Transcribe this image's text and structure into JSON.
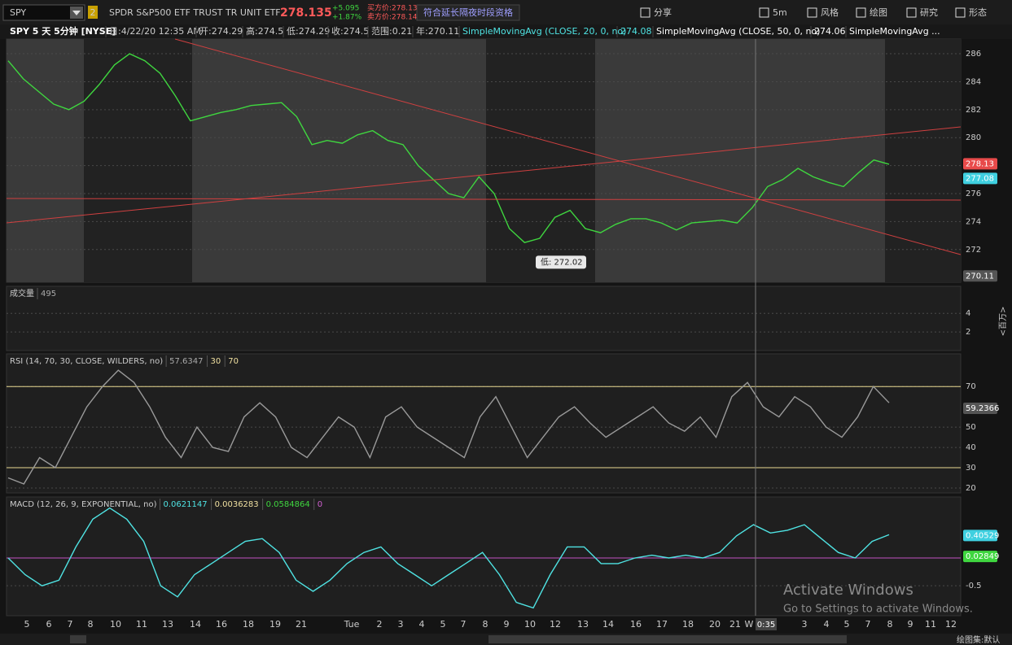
{
  "toolbar": {
    "symbol": "SPY",
    "badge": "2",
    "description": "SPDR S&P500 ETF TRUST TR UNIT ETF",
    "last": "278.135",
    "change": "+5.095",
    "change_pct": "+1.87%",
    "bid": "买方价:278.13",
    "ask": "卖方价:278.14",
    "extended": "符合延长隔夜时段资格",
    "buttons": [
      "分享",
      "5m",
      "风格",
      "绘图",
      "研究",
      "形态"
    ]
  },
  "info_bar": {
    "items": [
      {
        "text": "SPY 5 天 5分钟 [NYSE]",
        "color": "#ffffff"
      },
      {
        "text": "日:4/22/20 12:35 AM",
        "color": "#cccccc"
      },
      {
        "text": "开:274.29",
        "color": "#cccccc"
      },
      {
        "text": "高:274.5",
        "color": "#cccccc"
      },
      {
        "text": "低:274.29",
        "color": "#cccccc"
      },
      {
        "text": "收:274.5",
        "color": "#cccccc"
      },
      {
        "text": "范围:0.21",
        "color": "#cccccc"
      },
      {
        "text": "年:270.11",
        "color": "#cccccc"
      },
      {
        "text": "SimpleMovingAvg (CLOSE, 20, 0, no)",
        "color": "#4fe3e3"
      },
      {
        "text": "274.08",
        "color": "#4fe3e3"
      },
      {
        "text": "SimpleMovingAvg (CLOSE, 50, 0, no)",
        "color": "#ffffff"
      },
      {
        "text": "274.06",
        "color": "#ffffff"
      },
      {
        "text": "SimpleMovingAvg ...",
        "color": "#ffffff"
      }
    ]
  },
  "chart_data": [
    {
      "type": "line",
      "ylim": [
        269.66,
        287.05
      ],
      "yticks": [
        272,
        274,
        276,
        278,
        280,
        282,
        284,
        286
      ],
      "series": [
        {
          "color": "#3fd63f",
          "values": [
            285.5,
            284.2,
            283.3,
            282.4,
            282.0,
            282.6,
            283.8,
            285.2,
            286.0,
            285.5,
            284.6,
            283.0,
            281.2,
            281.5,
            281.8,
            282.0,
            282.3,
            282.4,
            282.5,
            281.5,
            279.5,
            279.8,
            279.6,
            280.2,
            280.5,
            279.8,
            279.5,
            278.0,
            277.0,
            276.0,
            275.7,
            277.2,
            276.0,
            273.5,
            272.5,
            272.8,
            274.3,
            274.8,
            273.5,
            273.2,
            273.8,
            274.2,
            274.2,
            273.9,
            273.4,
            273.9,
            274.0,
            274.1,
            273.9,
            275.0,
            276.5,
            277.0,
            277.8,
            277.2,
            276.8,
            276.5,
            277.5,
            278.4,
            278.1
          ]
        }
      ],
      "price_labels": [
        {
          "value": 278.13,
          "color": "#e84a4a"
        },
        {
          "value": 277.08,
          "color": "#3fd0e0"
        },
        {
          "value": 270.11,
          "color": "#555555"
        }
      ],
      "annotation": {
        "value": 272.02,
        "label": "低: 272.02"
      }
    },
    {
      "type": "volume",
      "title": "成交量",
      "readouts": [
        {
          "value": 495,
          "color": "#aaaaaa"
        }
      ],
      "ylim": [
        0,
        6.9
      ],
      "yticks": [
        2,
        4
      ],
      "unit": "<百万>"
    },
    {
      "type": "line",
      "title": "RSI (14, 70, 30, CLOSE, WILDERS, no)",
      "readouts": [
        {
          "value": 57.6347,
          "color": "#aaaaaa"
        },
        {
          "value": 30,
          "color": "#f0e0a0"
        },
        {
          "value": 70,
          "color": "#f0e0a0"
        }
      ],
      "ylim": [
        17.6,
        86.1
      ],
      "yticks": [
        20,
        30,
        40,
        50,
        70
      ],
      "series": [
        {
          "color": "#9a9a9a",
          "values": [
            25,
            22,
            35,
            30,
            45,
            60,
            70,
            78,
            72,
            60,
            45,
            35,
            50,
            40,
            38,
            55,
            62,
            55,
            40,
            35,
            45,
            55,
            50,
            35,
            55,
            60,
            50,
            45,
            40,
            35,
            55,
            65,
            50,
            35,
            45,
            55,
            60,
            52,
            45,
            50,
            55,
            60,
            52,
            48,
            55,
            45,
            65,
            72,
            60,
            55,
            65,
            60,
            50,
            45,
            55,
            70,
            62
          ]
        }
      ],
      "price_labels": [
        {
          "value": 59.2366,
          "color": "#555555"
        }
      ]
    },
    {
      "type": "line",
      "title": "MACD (12, 26, 9, EXPONENTIAL, no)",
      "readouts": [
        {
          "value": 0.0621147,
          "color": "#4fe3e3"
        },
        {
          "value": 0.0036283,
          "color": "#f0e0a0"
        },
        {
          "value": 0.0584864,
          "color": "#3fd63f"
        },
        {
          "value": 0,
          "color": "#d060d0"
        }
      ],
      "ylim": [
        -1.04,
        1.1
      ],
      "yticks": [
        -0.5
      ],
      "series": [
        {
          "color": "#4fe3e3",
          "values": [
            0,
            -0.3,
            -0.5,
            -0.4,
            0.2,
            0.7,
            0.9,
            0.7,
            0.3,
            -0.5,
            -0.7,
            -0.3,
            -0.1,
            0.1,
            0.3,
            0.35,
            0.1,
            -0.4,
            -0.6,
            -0.4,
            -0.1,
            0.1,
            0.2,
            -0.1,
            -0.3,
            -0.5,
            -0.3,
            -0.1,
            0.1,
            -0.3,
            -0.8,
            -0.9,
            -0.3,
            0.2,
            0.2,
            -0.1,
            -0.1,
            0.0,
            0.05,
            0.0,
            0.05,
            0.0,
            0.1,
            0.4,
            0.6,
            0.45,
            0.5,
            0.6,
            0.35,
            0.1,
            0.0,
            0.3,
            0.42
          ]
        }
      ],
      "price_labels": [
        {
          "value": 0.40529,
          "color": "#3fd0e0"
        },
        {
          "value": 0.02849,
          "color": "#3fd63f"
        }
      ]
    }
  ],
  "x_axis": {
    "labels": [
      "5",
      "6",
      "7",
      "8",
      "10",
      "11",
      "13",
      "14",
      "16",
      "18",
      "19",
      "21",
      "Tue",
      "2",
      "3",
      "4",
      "5",
      "7",
      "8",
      "9",
      "10",
      "12",
      "13",
      "14",
      "16",
      "17",
      "18",
      "20",
      "21",
      "W",
      "3",
      "4",
      "5",
      "7",
      "8",
      "9",
      "11",
      "12"
    ],
    "time_box": "0:35"
  },
  "footer": {
    "drawing_set": "绘图集:默认"
  },
  "watermark": {
    "title": "Activate Windows",
    "subtitle": "Go to Settings to activate Windows."
  }
}
